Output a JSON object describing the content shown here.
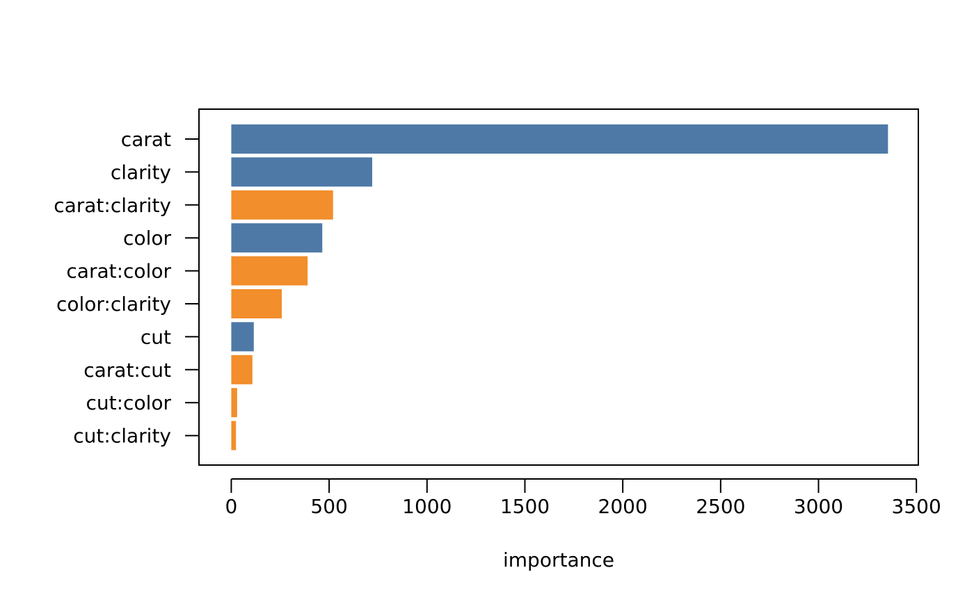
{
  "chart_data": {
    "type": "bar",
    "orientation": "horizontal",
    "title": "",
    "xlabel": "importance",
    "ylabel": "",
    "xlim": [
      -165,
      3510
    ],
    "xticks": [
      "0",
      "500",
      "1000",
      "1500",
      "2000",
      "2500",
      "3000",
      "3500"
    ],
    "grid": false,
    "legend": "none",
    "categories": [
      "carat",
      "clarity",
      "carat:clarity",
      "color",
      "carat:color",
      "color:clarity",
      "cut",
      "carat:cut",
      "cut:color",
      "cut:clarity"
    ],
    "values": [
      3355,
      720,
      520,
      465,
      390,
      258,
      115,
      108,
      30,
      24
    ],
    "bar_kind": [
      "main",
      "main",
      "interaction",
      "main",
      "interaction",
      "interaction",
      "main",
      "interaction",
      "interaction",
      "interaction"
    ],
    "colors": {
      "main": "#4e79a7",
      "interaction": "#f28e2b"
    }
  }
}
